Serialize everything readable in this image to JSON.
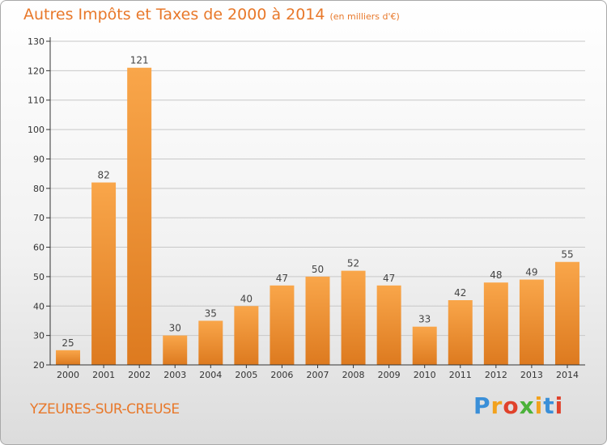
{
  "title": "Autres Impôts et Taxes de 2000 à 2014",
  "unit": "(en milliers d'€)",
  "commune": "YZEURES-SUR-CREUSE",
  "logo": {
    "letters": [
      "P",
      "r",
      "o",
      "x",
      "i",
      "t",
      "i"
    ],
    "colors": [
      "#3a8fd8",
      "#f2a21e",
      "#e0422b",
      "#4bb23a",
      "#f2a21e",
      "#3a8fd8",
      "#e0422b"
    ]
  },
  "colors": {
    "bar_light": "#f9a64a",
    "bar_dark": "#dd7a1f",
    "accent": "#e8782a",
    "axis": "#333333",
    "grid": "#c8c8c8"
  },
  "chart_data": {
    "type": "bar",
    "categories": [
      "2000",
      "2001",
      "2002",
      "2003",
      "2004",
      "2005",
      "2006",
      "2007",
      "2008",
      "2009",
      "2010",
      "2011",
      "2012",
      "2013",
      "2014"
    ],
    "values": [
      25,
      82,
      121,
      30,
      35,
      40,
      47,
      50,
      52,
      47,
      33,
      42,
      48,
      49,
      55
    ],
    "ylim": [
      20,
      130
    ],
    "yticks": [
      20,
      30,
      40,
      50,
      60,
      70,
      80,
      90,
      100,
      110,
      120,
      130
    ],
    "grid": "horizontal",
    "data_labels": true
  }
}
